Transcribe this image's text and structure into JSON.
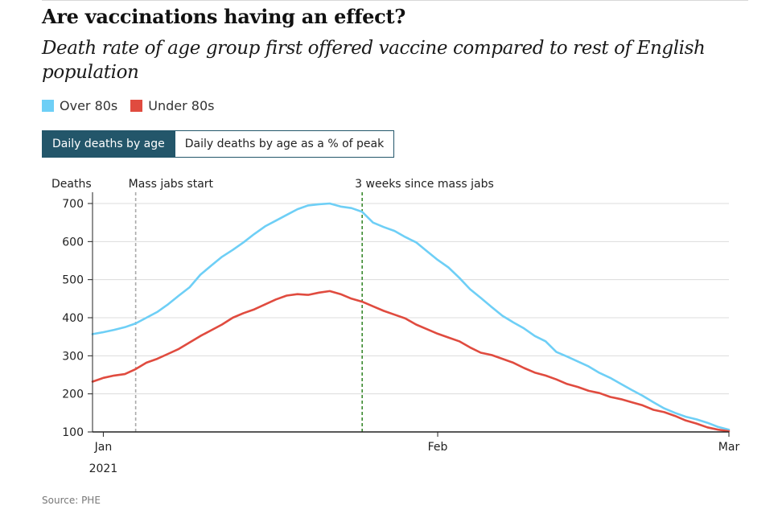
{
  "header": {
    "title": "Are vaccinations having an effect?",
    "subtitle": "Death rate of age group first offered vaccine compared to rest of English population"
  },
  "legend": {
    "items": [
      {
        "label": "Over 80s",
        "color": "#6ecff6"
      },
      {
        "label": "Under 80s",
        "color": "#e04b3f"
      }
    ]
  },
  "tabs": {
    "active_label": "Daily deaths by age",
    "inactive_label": "Daily deaths by age as a % of peak"
  },
  "source": "Source: PHE",
  "chart_data": {
    "type": "line",
    "ylabel": "Deaths",
    "ylim": [
      100,
      700
    ],
    "yticks": [
      100,
      200,
      300,
      400,
      500,
      600,
      700
    ],
    "grid": true,
    "x_range_days": [
      0,
      58
    ],
    "x_ticks": [
      {
        "day": 0,
        "label": "Jan",
        "sublabel": "2021"
      },
      {
        "day": 31,
        "label": "Feb",
        "sublabel": ""
      },
      {
        "day": 59,
        "label": "Mar",
        "sublabel": ""
      }
    ],
    "annotations": [
      {
        "day": 3,
        "label": "Mass jabs start",
        "color": "#aaaaaa"
      },
      {
        "day": 24,
        "label": "3 weeks since mass jabs",
        "color": "#3a8a2e"
      }
    ],
    "series": [
      {
        "name": "Over 80s",
        "color": "#6ecff6",
        "x": [
          -1,
          0,
          1,
          2,
          3,
          4,
          5,
          6,
          7,
          8,
          9,
          10,
          11,
          12,
          13,
          14,
          15,
          16,
          17,
          18,
          19,
          20,
          21,
          22,
          23,
          24,
          25,
          26,
          27,
          28,
          29,
          30,
          31,
          32,
          33,
          34,
          35,
          36,
          37,
          38,
          39,
          40,
          41,
          42,
          43,
          44,
          45,
          46,
          47,
          48,
          49,
          50,
          51,
          52,
          53,
          54,
          55,
          56,
          57,
          58
        ],
        "values": [
          357,
          362,
          368,
          375,
          385,
          400,
          415,
          435,
          458,
          480,
          513,
          537,
          560,
          578,
          598,
          620,
          640,
          655,
          670,
          685,
          695,
          698,
          700,
          692,
          688,
          678,
          650,
          638,
          628,
          612,
          598,
          575,
          552,
          532,
          505,
          475,
          452,
          428,
          405,
          388,
          372,
          352,
          338,
          310,
          298,
          285,
          272,
          255,
          242,
          226,
          210,
          195,
          178,
          162,
          150,
          140,
          133,
          124,
          113,
          106
        ]
      },
      {
        "name": "Under 80s",
        "color": "#e04b3f",
        "x": [
          -1,
          0,
          1,
          2,
          3,
          4,
          5,
          6,
          7,
          8,
          9,
          10,
          11,
          12,
          13,
          14,
          15,
          16,
          17,
          18,
          19,
          20,
          21,
          22,
          23,
          24,
          25,
          26,
          27,
          28,
          29,
          30,
          31,
          32,
          33,
          34,
          35,
          36,
          37,
          38,
          39,
          40,
          41,
          42,
          43,
          44,
          45,
          46,
          47,
          48,
          49,
          50,
          51,
          52,
          53,
          54,
          55,
          56,
          57,
          58
        ],
        "values": [
          232,
          242,
          248,
          252,
          265,
          282,
          292,
          305,
          318,
          335,
          352,
          367,
          382,
          400,
          412,
          422,
          435,
          448,
          458,
          462,
          460,
          466,
          470,
          462,
          450,
          442,
          430,
          418,
          408,
          398,
          382,
          370,
          358,
          348,
          338,
          322,
          308,
          302,
          292,
          282,
          268,
          256,
          248,
          238,
          226,
          218,
          208,
          202,
          192,
          186,
          178,
          170,
          158,
          152,
          142,
          130,
          122,
          112,
          106,
          102
        ]
      }
    ]
  }
}
